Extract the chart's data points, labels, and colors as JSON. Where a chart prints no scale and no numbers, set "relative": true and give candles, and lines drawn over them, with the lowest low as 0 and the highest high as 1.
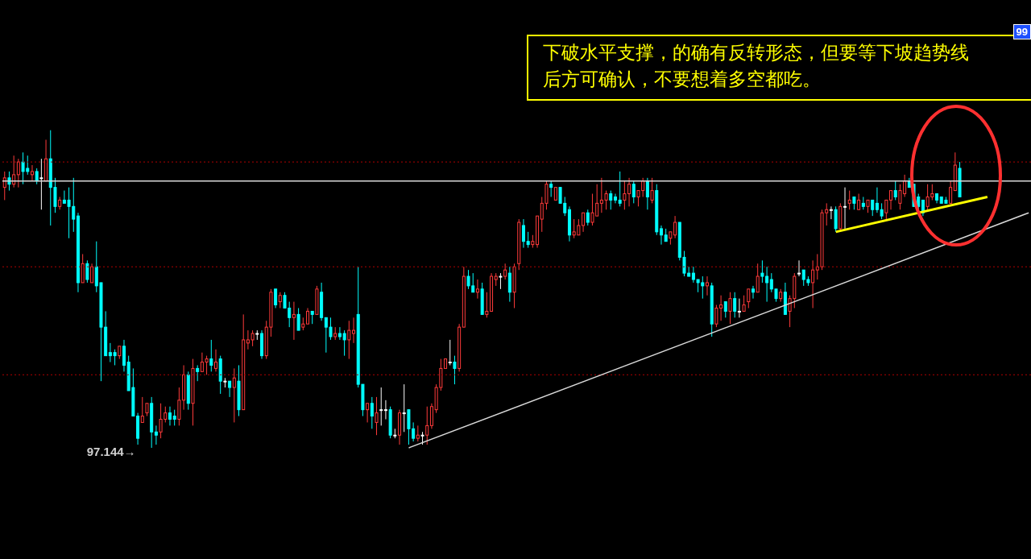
{
  "chart_data": {
    "type": "candlestick",
    "relative": true,
    "annotations": [
      "下破水平支撑，的确有反转形态，但要等下坡趋势线",
      "后方可确认，不要想着多空都吃。",
      "97.144→",
      "99"
    ],
    "categories": [
      null,
      null,
      null,
      null,
      null,
      null,
      null,
      null,
      null,
      null,
      null,
      null,
      null,
      null,
      null,
      null,
      null,
      null,
      null,
      null,
      null,
      null,
      null,
      null,
      null,
      null,
      null,
      null,
      null,
      null,
      null,
      null,
      null,
      null,
      null,
      null,
      null,
      null,
      null,
      null,
      null,
      null,
      null,
      null,
      null,
      null,
      null,
      null,
      null,
      null,
      null,
      null,
      null,
      null,
      null,
      null,
      null,
      null,
      null,
      null,
      null,
      null,
      null,
      null,
      null,
      null,
      null,
      null,
      null,
      null,
      null,
      null,
      null,
      null,
      null,
      null,
      null,
      null,
      null,
      null,
      null,
      null,
      null,
      null,
      null,
      null,
      null,
      null,
      null,
      null,
      null,
      null,
      null,
      null,
      null,
      null,
      null,
      null,
      null,
      null,
      null,
      null,
      null,
      null,
      null,
      null,
      null,
      null,
      null,
      null,
      null,
      null,
      null,
      null,
      null,
      null,
      null,
      null,
      null,
      null,
      null,
      null,
      null,
      null,
      null,
      null,
      null,
      null,
      null,
      null,
      null,
      null,
      null,
      null,
      null,
      null,
      null,
      null,
      null,
      null,
      null,
      null,
      null,
      null,
      null,
      null,
      null,
      null,
      null,
      null,
      null,
      null,
      null,
      null,
      null,
      null,
      null,
      null,
      null,
      null,
      null,
      null,
      null,
      null,
      null,
      null,
      null,
      null,
      null,
      null,
      null,
      null,
      null,
      null,
      null,
      null,
      null,
      null,
      null,
      null,
      null,
      null,
      null,
      null,
      null,
      null,
      null,
      null,
      null,
      null,
      null,
      null,
      null,
      null,
      null,
      null,
      null,
      null,
      null,
      null,
      null,
      null,
      null,
      null,
      null,
      null,
      null,
      null,
      null,
      null,
      null,
      null,
      null,
      null,
      null,
      null,
      null,
      null,
      null,
      null,
      null,
      null,
      null,
      null
    ],
    "ohlc": [
      [
        0.82,
        0.87,
        0.78,
        0.85
      ],
      [
        0.85,
        0.87,
        0.81,
        0.83
      ],
      [
        0.83,
        0.92,
        0.82,
        0.86
      ],
      [
        0.86,
        0.91,
        0.82,
        0.9
      ],
      [
        0.9,
        0.93,
        0.83,
        0.87
      ],
      [
        0.88,
        0.92,
        0.86,
        0.87
      ],
      [
        0.86,
        0.89,
        0.84,
        0.87
      ],
      [
        0.87,
        0.88,
        0.83,
        0.84
      ],
      [
        0.85,
        0.91,
        0.75,
        0.85
      ],
      [
        0.84,
        0.97,
        0.84,
        0.91
      ],
      [
        0.91,
        1.0,
        0.7,
        0.82
      ],
      [
        0.82,
        0.85,
        0.74,
        0.76
      ],
      [
        0.76,
        0.79,
        0.75,
        0.78
      ],
      [
        0.78,
        0.81,
        0.77,
        0.77
      ],
      [
        0.78,
        0.82,
        0.66,
        0.76
      ],
      [
        0.76,
        0.85,
        0.68,
        0.72
      ],
      [
        0.73,
        0.74,
        0.49,
        0.52
      ],
      [
        0.52,
        0.61,
        0.52,
        0.58
      ],
      [
        0.58,
        0.59,
        0.52,
        0.53
      ],
      [
        0.52,
        0.58,
        0.52,
        0.57
      ],
      [
        0.57,
        0.65,
        0.49,
        0.51
      ],
      [
        0.52,
        0.52,
        0.21,
        0.38
      ],
      [
        0.38,
        0.43,
        0.29,
        0.29
      ],
      [
        0.3,
        0.33,
        0.27,
        0.29
      ],
      [
        0.3,
        0.31,
        0.26,
        0.29
      ],
      [
        0.29,
        0.32,
        0.28,
        0.32
      ],
      [
        0.32,
        0.34,
        0.24,
        0.26
      ],
      [
        0.27,
        0.29,
        0.18,
        0.18
      ],
      [
        0.19,
        0.25,
        0.1,
        0.1
      ],
      [
        0.1,
        0.11,
        0.01,
        0.03
      ],
      [
        0.08,
        0.16,
        0.08,
        0.1
      ],
      [
        0.11,
        0.14,
        0.1,
        0.14
      ],
      [
        0.14,
        0.16,
        0.0,
        0.05
      ],
      [
        0.05,
        0.07,
        0.01,
        0.04
      ],
      [
        0.05,
        0.14,
        0.03,
        0.09
      ],
      [
        0.09,
        0.13,
        0.08,
        0.11
      ],
      [
        0.11,
        0.13,
        0.07,
        0.09
      ],
      [
        0.1,
        0.12,
        0.07,
        0.09
      ],
      [
        0.09,
        0.19,
        0.07,
        0.15
      ],
      [
        0.15,
        0.26,
        0.12,
        0.23
      ],
      [
        0.23,
        0.24,
        0.12,
        0.14
      ],
      [
        0.14,
        0.28,
        0.07,
        0.25
      ],
      [
        0.25,
        0.26,
        0.21,
        0.24
      ],
      [
        0.24,
        0.3,
        0.24,
        0.27
      ],
      [
        0.27,
        0.29,
        0.23,
        0.28
      ],
      [
        0.28,
        0.34,
        0.24,
        0.26
      ],
      [
        0.25,
        0.31,
        0.24,
        0.27
      ],
      [
        0.28,
        0.29,
        0.17,
        0.21
      ],
      [
        0.21,
        0.22,
        0.19,
        0.21
      ],
      [
        0.21,
        0.21,
        0.16,
        0.19
      ],
      [
        0.19,
        0.25,
        0.08,
        0.22
      ],
      [
        0.21,
        0.26,
        0.1,
        0.12
      ],
      [
        0.12,
        0.42,
        0.12,
        0.34
      ],
      [
        0.33,
        0.37,
        0.31,
        0.34
      ],
      [
        0.34,
        0.37,
        0.32,
        0.36
      ],
      [
        0.36,
        0.37,
        0.34,
        0.36
      ],
      [
        0.36,
        0.37,
        0.28,
        0.29
      ],
      [
        0.29,
        0.4,
        0.28,
        0.38
      ],
      [
        0.38,
        0.5,
        0.35,
        0.49
      ],
      [
        0.5,
        0.5,
        0.44,
        0.45
      ],
      [
        0.46,
        0.49,
        0.44,
        0.48
      ],
      [
        0.48,
        0.49,
        0.44,
        0.44
      ],
      [
        0.44,
        0.46,
        0.38,
        0.41
      ],
      [
        0.41,
        0.46,
        0.34,
        0.42
      ],
      [
        0.42,
        0.44,
        0.37,
        0.37
      ],
      [
        0.38,
        0.41,
        0.37,
        0.39
      ],
      [
        0.39,
        0.44,
        0.39,
        0.43
      ],
      [
        0.43,
        0.43,
        0.39,
        0.42
      ],
      [
        0.42,
        0.51,
        0.42,
        0.5
      ],
      [
        0.49,
        0.52,
        0.4,
        0.41
      ],
      [
        0.41,
        0.41,
        0.3,
        0.38
      ],
      [
        0.38,
        0.41,
        0.34,
        0.35
      ],
      [
        0.35,
        0.38,
        0.34,
        0.36
      ],
      [
        0.36,
        0.38,
        0.34,
        0.35
      ],
      [
        0.36,
        0.37,
        0.29,
        0.34
      ],
      [
        0.34,
        0.4,
        0.28,
        0.37
      ],
      [
        0.36,
        0.41,
        0.33,
        0.37
      ],
      [
        0.42,
        0.57,
        0.19,
        0.2
      ],
      [
        0.2,
        0.2,
        0.1,
        0.12
      ],
      [
        0.12,
        0.14,
        0.08,
        0.14
      ],
      [
        0.14,
        0.16,
        0.06,
        0.1
      ],
      [
        0.08,
        0.16,
        0.04,
        0.11
      ],
      [
        0.12,
        0.19,
        0.07,
        0.12
      ],
      [
        0.12,
        0.15,
        0.09,
        0.12
      ],
      [
        0.12,
        0.13,
        0.03,
        0.04
      ],
      [
        0.04,
        0.06,
        0.03,
        0.04
      ],
      [
        0.04,
        0.12,
        0.01,
        0.11
      ],
      [
        0.11,
        0.2,
        0.05,
        0.11
      ],
      [
        0.12,
        0.12,
        0.01,
        0.06
      ],
      [
        0.06,
        0.08,
        0.02,
        0.03
      ],
      [
        0.03,
        0.07,
        0.02,
        0.04
      ],
      [
        0.04,
        0.05,
        0.01,
        0.04
      ],
      [
        0.04,
        0.13,
        0.01,
        0.07
      ],
      [
        0.07,
        0.14,
        0.06,
        0.13
      ],
      [
        0.12,
        0.2,
        0.11,
        0.19
      ],
      [
        0.19,
        0.28,
        0.18,
        0.25
      ],
      [
        0.25,
        0.28,
        0.25,
        0.28
      ],
      [
        0.27,
        0.34,
        0.26,
        0.27
      ],
      [
        0.27,
        0.29,
        0.2,
        0.25
      ],
      [
        0.25,
        0.39,
        0.24,
        0.38
      ],
      [
        0.38,
        0.57,
        0.38,
        0.54
      ],
      [
        0.54,
        0.56,
        0.5,
        0.51
      ],
      [
        0.51,
        0.55,
        0.49,
        0.49
      ],
      [
        0.49,
        0.53,
        0.47,
        0.5
      ],
      [
        0.5,
        0.52,
        0.42,
        0.42
      ],
      [
        0.42,
        0.49,
        0.41,
        0.43
      ],
      [
        0.43,
        0.55,
        0.43,
        0.54
      ],
      [
        0.53,
        0.55,
        0.51,
        0.54
      ],
      [
        0.54,
        0.55,
        0.5,
        0.54
      ],
      [
        0.54,
        0.58,
        0.53,
        0.56
      ],
      [
        0.55,
        0.57,
        0.46,
        0.49
      ],
      [
        0.49,
        0.58,
        0.44,
        0.57
      ],
      [
        0.58,
        0.72,
        0.56,
        0.71
      ],
      [
        0.7,
        0.72,
        0.63,
        0.65
      ],
      [
        0.65,
        0.68,
        0.63,
        0.64
      ],
      [
        0.64,
        0.67,
        0.63,
        0.65
      ],
      [
        0.64,
        0.73,
        0.63,
        0.73
      ],
      [
        0.72,
        0.79,
        0.68,
        0.77
      ],
      [
        0.77,
        0.84,
        0.75,
        0.83
      ],
      [
        0.83,
        0.84,
        0.79,
        0.82
      ],
      [
        0.78,
        0.82,
        0.78,
        0.82
      ],
      [
        0.82,
        0.82,
        0.77,
        0.77
      ],
      [
        0.77,
        0.79,
        0.73,
        0.74
      ],
      [
        0.75,
        0.76,
        0.65,
        0.67
      ],
      [
        0.67,
        0.72,
        0.66,
        0.68
      ],
      [
        0.67,
        0.72,
        0.67,
        0.7
      ],
      [
        0.7,
        0.74,
        0.68,
        0.74
      ],
      [
        0.74,
        0.75,
        0.7,
        0.71
      ],
      [
        0.71,
        0.8,
        0.7,
        0.74
      ],
      [
        0.73,
        0.83,
        0.73,
        0.77
      ],
      [
        0.77,
        0.85,
        0.74,
        0.78
      ],
      [
        0.78,
        0.81,
        0.75,
        0.8
      ],
      [
        0.8,
        0.81,
        0.75,
        0.78
      ],
      [
        0.79,
        0.8,
        0.77,
        0.78
      ],
      [
        0.78,
        0.87,
        0.76,
        0.77
      ],
      [
        0.78,
        0.84,
        0.75,
        0.8
      ],
      [
        0.8,
        0.85,
        0.76,
        0.83
      ],
      [
        0.83,
        0.84,
        0.77,
        0.79
      ],
      [
        0.79,
        0.81,
        0.76,
        0.81
      ],
      [
        0.81,
        0.85,
        0.79,
        0.84
      ],
      [
        0.84,
        0.85,
        0.75,
        0.79
      ],
      [
        0.78,
        0.85,
        0.77,
        0.81
      ],
      [
        0.81,
        0.83,
        0.67,
        0.68
      ],
      [
        0.69,
        0.7,
        0.64,
        0.67
      ],
      [
        0.67,
        0.69,
        0.65,
        0.65
      ],
      [
        0.66,
        0.68,
        0.64,
        0.68
      ],
      [
        0.67,
        0.73,
        0.66,
        0.71
      ],
      [
        0.71,
        0.71,
        0.59,
        0.6
      ],
      [
        0.6,
        0.62,
        0.54,
        0.55
      ],
      [
        0.55,
        0.57,
        0.54,
        0.54
      ],
      [
        0.55,
        0.57,
        0.52,
        0.53
      ],
      [
        0.53,
        0.53,
        0.49,
        0.52
      ],
      [
        0.52,
        0.54,
        0.47,
        0.51
      ],
      [
        0.51,
        0.54,
        0.48,
        0.52
      ],
      [
        0.51,
        0.52,
        0.35,
        0.39
      ],
      [
        0.39,
        0.45,
        0.38,
        0.44
      ],
      [
        0.44,
        0.48,
        0.4,
        0.45
      ],
      [
        0.46,
        0.46,
        0.41,
        0.43
      ],
      [
        0.43,
        0.49,
        0.39,
        0.47
      ],
      [
        0.47,
        0.49,
        0.41,
        0.43
      ],
      [
        0.43,
        0.47,
        0.41,
        0.43
      ],
      [
        0.43,
        0.48,
        0.43,
        0.45
      ],
      [
        0.46,
        0.5,
        0.44,
        0.5
      ],
      [
        0.5,
        0.51,
        0.47,
        0.49
      ],
      [
        0.49,
        0.58,
        0.49,
        0.54
      ],
      [
        0.55,
        0.59,
        0.52,
        0.54
      ],
      [
        0.54,
        0.57,
        0.46,
        0.52
      ],
      [
        0.53,
        0.55,
        0.49,
        0.5
      ],
      [
        0.5,
        0.5,
        0.46,
        0.47
      ],
      [
        0.47,
        0.5,
        0.46,
        0.49
      ],
      [
        0.49,
        0.52,
        0.42,
        0.42
      ],
      [
        0.43,
        0.48,
        0.38,
        0.47
      ],
      [
        0.47,
        0.55,
        0.44,
        0.54
      ],
      [
        0.55,
        0.59,
        0.54,
        0.55
      ],
      [
        0.56,
        0.56,
        0.51,
        0.53
      ],
      [
        0.53,
        0.54,
        0.51,
        0.52
      ],
      [
        0.52,
        0.59,
        0.44,
        0.56
      ],
      [
        0.56,
        0.61,
        0.53,
        0.57
      ],
      [
        0.57,
        0.75,
        0.56,
        0.74
      ],
      [
        0.74,
        0.77,
        0.7,
        0.75
      ],
      [
        0.75,
        0.76,
        0.72,
        0.75
      ],
      [
        0.75,
        0.76,
        0.68,
        0.69
      ],
      [
        0.69,
        0.77,
        0.68,
        0.76
      ],
      [
        0.76,
        0.82,
        0.69,
        0.76
      ],
      [
        0.77,
        0.81,
        0.75,
        0.78
      ],
      [
        0.79,
        0.79,
        0.75,
        0.77
      ],
      [
        0.75,
        0.8,
        0.75,
        0.78
      ],
      [
        0.77,
        0.79,
        0.75,
        0.76
      ],
      [
        0.76,
        0.78,
        0.74,
        0.78
      ],
      [
        0.78,
        0.78,
        0.73,
        0.75
      ],
      [
        0.77,
        0.82,
        0.74,
        0.75
      ],
      [
        0.75,
        0.77,
        0.72,
        0.73
      ],
      [
        0.74,
        0.78,
        0.72,
        0.78
      ],
      [
        0.78,
        0.81,
        0.75,
        0.81
      ],
      [
        0.81,
        0.84,
        0.78,
        0.79
      ],
      [
        0.77,
        0.83,
        0.75,
        0.81
      ],
      [
        0.8,
        0.86,
        0.79,
        0.84
      ],
      [
        0.84,
        0.85,
        0.82,
        0.82
      ],
      [
        0.83,
        0.83,
        0.76,
        0.76
      ],
      [
        0.79,
        0.8,
        0.75,
        0.76
      ],
      [
        0.78,
        0.78,
        0.73,
        0.74
      ],
      [
        0.76,
        0.83,
        0.75,
        0.79
      ],
      [
        0.79,
        0.83,
        0.78,
        0.8
      ],
      [
        0.8,
        0.8,
        0.77,
        0.78
      ],
      [
        0.79,
        0.79,
        0.77,
        0.77
      ],
      [
        0.78,
        0.79,
        0.77,
        0.77
      ],
      [
        0.77,
        0.84,
        0.77,
        0.82
      ],
      [
        0.81,
        0.93,
        0.81,
        0.89
      ],
      [
        0.88,
        0.9,
        0.79,
        0.79
      ],
      null,
      null,
      null,
      null,
      null,
      null,
      null,
      null,
      null,
      null,
      null,
      null,
      null,
      null,
      null
    ],
    "series": [
      {
        "type": "line",
        "color": "#d9d9d9",
        "values": [
          null,
          null,
          null,
          null,
          null,
          null,
          null,
          null,
          null,
          null,
          null,
          null,
          null,
          null,
          null,
          null,
          null,
          null,
          null,
          null,
          null,
          null,
          null,
          null,
          null,
          null,
          null,
          null,
          null,
          null,
          null,
          null,
          null,
          null,
          null,
          null,
          null,
          null,
          null,
          null,
          null,
          null,
          null,
          null,
          null,
          null,
          null,
          null,
          null,
          null,
          null,
          null,
          null,
          null,
          null,
          null,
          null,
          null,
          null,
          null,
          null,
          null,
          null,
          null,
          null,
          null,
          null,
          null,
          null,
          null,
          null,
          null,
          null,
          null,
          null,
          null,
          null,
          null,
          null,
          null,
          null,
          null,
          null,
          null,
          null,
          null,
          null,
          null,
          0,
          null,
          null,
          null,
          null,
          null,
          null,
          null,
          null,
          null,
          null,
          null,
          null,
          null,
          null,
          null,
          null,
          null,
          null,
          null,
          null,
          null,
          null,
          null,
          null,
          null,
          null,
          null,
          null,
          null,
          null,
          null,
          null,
          null,
          null,
          null,
          null,
          null,
          null,
          null,
          null,
          null,
          null,
          null,
          null,
          null,
          null,
          null,
          null,
          null,
          null,
          null,
          null,
          null,
          null,
          null,
          null,
          null,
          null,
          null,
          null,
          null,
          null,
          null,
          null,
          null,
          null,
          null,
          null,
          null,
          null,
          null,
          null,
          null,
          null,
          null,
          null,
          null,
          null,
          null,
          null,
          null,
          null,
          null,
          null,
          null,
          null,
          null,
          null,
          null,
          null,
          null,
          null,
          null,
          null,
          null,
          null,
          null,
          null,
          null,
          null,
          null,
          null,
          null,
          null,
          null,
          null,
          null,
          null,
          null,
          null,
          null,
          null,
          null,
          null,
          null,
          null,
          null,
          null,
          null,
          null,
          null,
          null,
          null,
          null,
          null,
          null,
          null,
          null,
          null,
          null,
          null,
          null,
          null,
          null,
          0.74
        ]
      },
      {
        "type": "line",
        "color": "#ffff00",
        "values": [
          null,
          null,
          null,
          null,
          null,
          null,
          null,
          null,
          null,
          null,
          null,
          null,
          null,
          null,
          null,
          null,
          null,
          null,
          null,
          null,
          null,
          null,
          null,
          null,
          null,
          null,
          null,
          null,
          null,
          null,
          null,
          null,
          null,
          null,
          null,
          null,
          null,
          null,
          null,
          null,
          null,
          null,
          null,
          null,
          null,
          null,
          null,
          null,
          null,
          null,
          null,
          null,
          null,
          null,
          null,
          null,
          null,
          null,
          null,
          null,
          null,
          null,
          null,
          null,
          null,
          null,
          null,
          null,
          null,
          null,
          null,
          null,
          null,
          null,
          null,
          null,
          null,
          null,
          null,
          null,
          null,
          null,
          null,
          null,
          null,
          null,
          null,
          null,
          null,
          null,
          null,
          null,
          null,
          null,
          null,
          null,
          null,
          null,
          null,
          null,
          null,
          null,
          null,
          null,
          null,
          null,
          null,
          null,
          null,
          null,
          null,
          null,
          null,
          null,
          null,
          null,
          null,
          null,
          null,
          null,
          null,
          null,
          null,
          null,
          null,
          null,
          null,
          null,
          null,
          null,
          null,
          null,
          null,
          null,
          null,
          null,
          null,
          null,
          null,
          null,
          null,
          null,
          null,
          null,
          null,
          null,
          null,
          null,
          null,
          null,
          null,
          null,
          null,
          null,
          null,
          null,
          null,
          null,
          null,
          null,
          null,
          null,
          null,
          null,
          null,
          null,
          null,
          null,
          null,
          null,
          null,
          null,
          null,
          null,
          null,
          null,
          null,
          null,
          null,
          null,
          null,
          0.68,
          null,
          null,
          null,
          null,
          null,
          null,
          null,
          null,
          null,
          null,
          null,
          null,
          null,
          null,
          null,
          null,
          null,
          null,
          null,
          null,
          null,
          null,
          null,
          null,
          null,
          null,
          null,
          null,
          null,
          null,
          null,
          null,
          0.79,
          null,
          null,
          null,
          null,
          null,
          null,
          null,
          null,
          null
        ]
      }
    ],
    "ref_lines": [
      {
        "axis": "y",
        "value": 0.84,
        "color": "#d9d9d9",
        "line_style": "solid"
      },
      {
        "axis": "y",
        "value": 0.9,
        "color": "#b00000",
        "line_style": "dotted"
      },
      {
        "axis": "y",
        "value": 0.57,
        "color": "#b00000",
        "line_style": "dotted"
      },
      {
        "axis": "y",
        "value": 0.23,
        "color": "#b00000",
        "line_style": "dotted"
      }
    ]
  }
}
